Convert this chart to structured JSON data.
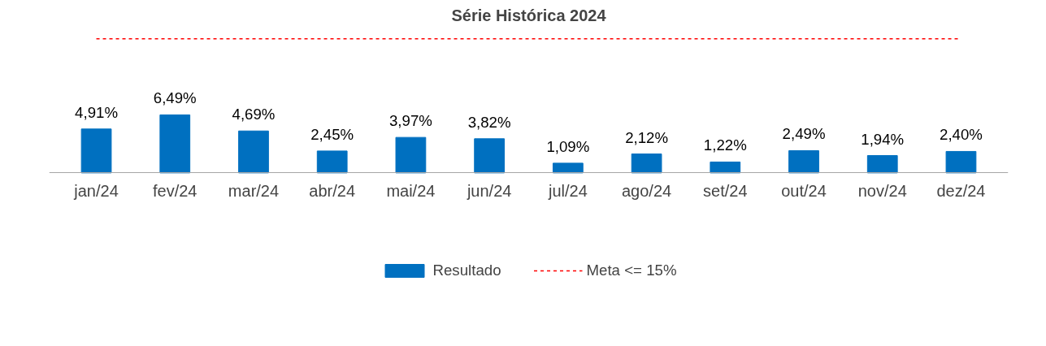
{
  "chart_data": {
    "type": "bar",
    "title": "Série Histórica 2024",
    "categories": [
      "jan/24",
      "fev/24",
      "mar/24",
      "abr/24",
      "mai/24",
      "jun/24",
      "jul/24",
      "ago/24",
      "set/24",
      "out/24",
      "nov/24",
      "dez/24"
    ],
    "series": [
      {
        "name": "Resultado",
        "type": "bar",
        "color": "#0070c0",
        "values": [
          4.91,
          6.49,
          4.69,
          2.45,
          3.97,
          3.82,
          1.09,
          2.12,
          1.22,
          2.49,
          1.94,
          2.4
        ],
        "value_labels": [
          "4,91%",
          "6,49%",
          "4,69%",
          "2,45%",
          "3,97%",
          "3,82%",
          "1,09%",
          "2,12%",
          "1,22%",
          "2,49%",
          "1,94%",
          "2,40%"
        ]
      },
      {
        "name": "Meta <= 15%",
        "type": "line",
        "color": "#ff0000",
        "line_style": "dashed",
        "values": [
          15,
          15,
          15,
          15,
          15,
          15,
          15,
          15,
          15,
          15,
          15,
          15
        ]
      }
    ],
    "tick_labels": "x",
    "legend": "bottom"
  }
}
